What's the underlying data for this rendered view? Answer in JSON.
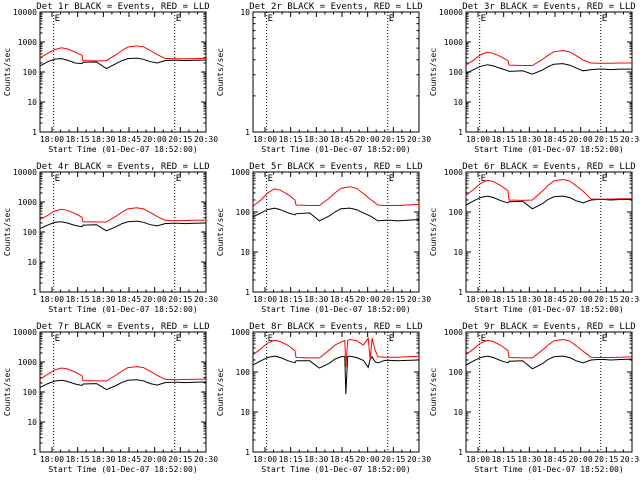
{
  "colors": {
    "events": "#000000",
    "lld": "#ff0000",
    "axis": "#000000",
    "background": "#ffffff"
  },
  "xaxis_label": "Start Time (01-Dec-07 18:52:00)",
  "yaxis_label": "Counts/sec",
  "marker_label": "E",
  "chart_data": [
    {
      "type": "line",
      "title": "Det 1r BLACK = Events, RED = LLD",
      "scale": "log",
      "xlim": [
        "17:52",
        "20:42"
      ],
      "ylim": [
        1,
        10000
      ],
      "xticks": [
        "18:00",
        "18:15",
        "18:30",
        "18:45",
        "20:00",
        "20:15",
        "20:30"
      ],
      "yticks": [
        "1",
        "10",
        "100",
        "1000",
        "10000"
      ],
      "markers_x": [
        "18:06",
        "20:10"
      ],
      "x": [
        "17:52",
        "18:00",
        "18:07",
        "18:14",
        "18:20",
        "18:28",
        "18:35",
        "18:36",
        "18:50",
        "19:00",
        "19:10",
        "19:16",
        "19:22",
        "19:31",
        "19:38",
        "19:45",
        "19:52",
        "20:00",
        "20:07",
        "20:13",
        "20:20",
        "20:30",
        "20:42"
      ],
      "series": [
        {
          "name": "BLACK = Events",
          "values": [
            160,
            220,
            270,
            280,
            250,
            200,
            190,
            210,
            215,
            130,
            190,
            240,
            280,
            290,
            265,
            220,
            200,
            240,
            245,
            245,
            240,
            245,
            250
          ]
        },
        {
          "name": "RED = LLD",
          "values": [
            300,
            420,
            560,
            640,
            590,
            460,
            360,
            240,
            235,
            240,
            380,
            520,
            680,
            740,
            690,
            520,
            380,
            285,
            280,
            275,
            275,
            280,
            285
          ]
        }
      ]
    },
    {
      "type": "line",
      "title": "Det 2r BLACK = Events, RED = LLD",
      "scale": "log",
      "xlim": [
        "17:52",
        "20:42"
      ],
      "ylim": [
        1,
        10
      ],
      "xticks": [
        "18:00",
        "18:15",
        "18:30",
        "18:45",
        "20:00",
        "20:15",
        "20:30"
      ],
      "yticks": [
        "1",
        "10"
      ],
      "markers_x": [
        "18:06",
        "20:10"
      ],
      "x": [],
      "series": []
    },
    {
      "type": "line",
      "title": "Det 3r BLACK = Events, RED = LLD",
      "scale": "log",
      "xlim": [
        "17:52",
        "20:42"
      ],
      "ylim": [
        1,
        10000
      ],
      "xticks": [
        "18:00",
        "18:15",
        "18:30",
        "18:45",
        "20:00",
        "20:15",
        "20:30"
      ],
      "yticks": [
        "1",
        "10",
        "100",
        "1000",
        "10000"
      ],
      "markers_x": [
        "18:06",
        "20:10"
      ],
      "x": [
        "17:52",
        "18:00",
        "18:07",
        "18:14",
        "18:20",
        "18:28",
        "18:35",
        "18:36",
        "18:50",
        "19:00",
        "19:10",
        "19:16",
        "19:22",
        "19:31",
        "19:38",
        "19:45",
        "19:52",
        "20:00",
        "20:07",
        "20:13",
        "20:20",
        "20:30",
        "20:42"
      ],
      "series": [
        {
          "name": "BLACK = Events",
          "values": [
            90,
            120,
            155,
            175,
            160,
            130,
            110,
            105,
            110,
            85,
            115,
            150,
            180,
            190,
            170,
            135,
            110,
            120,
            125,
            125,
            120,
            125,
            125
          ]
        },
        {
          "name": "RED = LLD",
          "values": [
            170,
            250,
            380,
            460,
            420,
            320,
            240,
            170,
            165,
            165,
            260,
            360,
            470,
            520,
            470,
            350,
            250,
            200,
            195,
            195,
            195,
            200,
            200
          ]
        }
      ]
    },
    {
      "type": "line",
      "title": "Det 4r BLACK = Events, RED = LLD",
      "scale": "log",
      "xlim": [
        "17:52",
        "20:42"
      ],
      "ylim": [
        1,
        10000
      ],
      "xticks": [
        "18:00",
        "18:15",
        "18:30",
        "18:45",
        "20:00",
        "20:15",
        "20:30"
      ],
      "yticks": [
        "1",
        "10",
        "100",
        "1000",
        "10000"
      ],
      "markers_x": [
        "18:06",
        "20:10"
      ],
      "x": [
        "17:52",
        "18:00",
        "18:07",
        "18:14",
        "18:20",
        "18:28",
        "18:35",
        "18:36",
        "18:50",
        "19:00",
        "19:10",
        "19:16",
        "19:22",
        "19:31",
        "19:38",
        "19:45",
        "19:52",
        "20:00",
        "20:07",
        "20:13",
        "20:20",
        "20:30",
        "20:42"
      ],
      "series": [
        {
          "name": "BLACK = Events",
          "values": [
            130,
            170,
            210,
            220,
            200,
            165,
            150,
            170,
            175,
            110,
            150,
            190,
            220,
            230,
            210,
            175,
            160,
            190,
            195,
            195,
            190,
            195,
            200
          ]
        },
        {
          "name": "RED = LLD",
          "values": [
            260,
            360,
            500,
            570,
            530,
            410,
            310,
            220,
            215,
            215,
            340,
            460,
            590,
            640,
            590,
            450,
            330,
            245,
            240,
            240,
            240,
            245,
            250
          ]
        }
      ]
    },
    {
      "type": "line",
      "title": "Det 5r BLACK = Events, RED = LLD",
      "scale": "log",
      "xlim": [
        "17:52",
        "20:42"
      ],
      "ylim": [
        1,
        1000
      ],
      "xticks": [
        "18:00",
        "18:15",
        "18:30",
        "18:45",
        "20:00",
        "20:15",
        "20:30"
      ],
      "yticks": [
        "1",
        "10",
        "100",
        "1000"
      ],
      "markers_x": [
        "18:06",
        "20:10"
      ],
      "x": [
        "17:52",
        "18:00",
        "18:07",
        "18:14",
        "18:20",
        "18:28",
        "18:35",
        "18:36",
        "18:50",
        "19:00",
        "19:10",
        "19:16",
        "19:22",
        "19:31",
        "19:38",
        "19:45",
        "19:52",
        "20:00",
        "20:07",
        "20:13",
        "20:20",
        "20:30",
        "20:42"
      ],
      "series": [
        {
          "name": "BLACK = Events",
          "values": [
            75,
            95,
            115,
            125,
            115,
            95,
            85,
            90,
            95,
            60,
            80,
            100,
            120,
            125,
            115,
            95,
            80,
            60,
            62,
            62,
            60,
            62,
            65
          ]
        },
        {
          "name": "RED = LLD",
          "values": [
            140,
            200,
            300,
            380,
            350,
            270,
            200,
            150,
            145,
            145,
            220,
            300,
            390,
            430,
            390,
            290,
            210,
            150,
            145,
            145,
            145,
            150,
            155
          ]
        }
      ]
    },
    {
      "type": "line",
      "title": "Det 6r BLACK = Events, RED = LLD",
      "scale": "log",
      "xlim": [
        "17:52",
        "20:42"
      ],
      "ylim": [
        1,
        1000
      ],
      "xticks": [
        "18:00",
        "18:15",
        "18:30",
        "18:45",
        "20:00",
        "20:15",
        "20:30"
      ],
      "yticks": [
        "1",
        "10",
        "100",
        "1000"
      ],
      "markers_x": [
        "18:06",
        "20:10"
      ],
      "x": [
        "17:52",
        "18:00",
        "18:07",
        "18:14",
        "18:20",
        "18:28",
        "18:35",
        "18:36",
        "18:50",
        "19:00",
        "19:10",
        "19:16",
        "19:22",
        "19:31",
        "19:38",
        "19:45",
        "19:52",
        "20:00",
        "20:07",
        "20:13",
        "20:20",
        "20:30",
        "20:42"
      ],
      "series": [
        {
          "name": "BLACK = Events",
          "values": [
            150,
            190,
            230,
            250,
            230,
            190,
            170,
            180,
            185,
            120,
            160,
            205,
            240,
            250,
            230,
            190,
            170,
            200,
            205,
            205,
            200,
            205,
            205
          ]
        },
        {
          "name": "RED = LLD",
          "values": [
            260,
            370,
            520,
            620,
            580,
            450,
            340,
            200,
            195,
            200,
            330,
            460,
            600,
            650,
            600,
            450,
            330,
            210,
            210,
            210,
            210,
            215,
            215
          ]
        }
      ]
    },
    {
      "type": "line",
      "title": "Det 7r BLACK = Events, RED = LLD",
      "scale": "log",
      "xlim": [
        "17:52",
        "20:42"
      ],
      "ylim": [
        1,
        10000
      ],
      "xticks": [
        "18:00",
        "18:15",
        "18:30",
        "18:45",
        "20:00",
        "20:15",
        "20:30"
      ],
      "yticks": [
        "1",
        "10",
        "100",
        "1000",
        "10000"
      ],
      "markers_x": [
        "18:06",
        "20:10"
      ],
      "x": [
        "17:52",
        "18:00",
        "18:07",
        "18:14",
        "18:20",
        "18:28",
        "18:35",
        "18:36",
        "18:50",
        "19:00",
        "19:10",
        "19:16",
        "19:22",
        "19:31",
        "19:38",
        "19:45",
        "19:52",
        "20:00",
        "20:07",
        "20:13",
        "20:20",
        "20:30",
        "20:42"
      ],
      "series": [
        {
          "name": "BLACK = Events",
          "values": [
            140,
            190,
            230,
            245,
            225,
            185,
            165,
            185,
            190,
            120,
            165,
            210,
            245,
            255,
            235,
            190,
            170,
            205,
            210,
            210,
            205,
            210,
            215
          ]
        },
        {
          "name": "RED = LLD",
          "values": [
            270,
            390,
            540,
            630,
            590,
            460,
            350,
            240,
            235,
            235,
            370,
            500,
            650,
            700,
            650,
            490,
            360,
            265,
            260,
            260,
            260,
            265,
            270
          ]
        }
      ]
    },
    {
      "type": "line",
      "title": "Det 8r BLACK = Events, RED = LLD",
      "scale": "log",
      "xlim": [
        "17:52",
        "20:42"
      ],
      "ylim": [
        1,
        1000
      ],
      "xticks": [
        "18:00",
        "18:15",
        "18:30",
        "18:45",
        "20:00",
        "20:15",
        "20:30"
      ],
      "yticks": [
        "1",
        "10",
        "100",
        "1000"
      ],
      "markers_x": [
        "18:06",
        "20:10"
      ],
      "x": [
        "17:52",
        "18:00",
        "18:07",
        "18:14",
        "18:20",
        "18:28",
        "18:35",
        "18:36",
        "18:50",
        "19:00",
        "19:10",
        "19:16",
        "19:22",
        "19:26",
        "19:27",
        "19:29",
        "19:31",
        "19:38",
        "19:45",
        "19:50",
        "19:52",
        "19:54",
        "19:57",
        "20:00",
        "20:07",
        "20:13",
        "20:20",
        "20:30",
        "20:42"
      ],
      "series": [
        {
          "name": "BLACK = Events",
          "values": [
            150,
            190,
            230,
            250,
            230,
            190,
            170,
            190,
            190,
            125,
            165,
            210,
            240,
            245,
            28,
            245,
            250,
            230,
            195,
            130,
            210,
            240,
            180,
            170,
            195,
            195,
            190,
            195,
            200
          ]
        },
        {
          "name": "RED = LLD",
          "values": [
            270,
            380,
            530,
            620,
            580,
            460,
            340,
            230,
            225,
            225,
            350,
            470,
            560,
            610,
            130,
            620,
            650,
            610,
            470,
            700,
            200,
            700,
            350,
            240,
            235,
            235,
            235,
            240,
            245
          ]
        }
      ]
    },
    {
      "type": "line",
      "title": "Det 9r BLACK = Events, RED = LLD",
      "scale": "log",
      "xlim": [
        "17:52",
        "20:42"
      ],
      "ylim": [
        1,
        1000
      ],
      "xticks": [
        "18:00",
        "18:15",
        "18:30",
        "18:45",
        "20:00",
        "20:15",
        "20:30"
      ],
      "yticks": [
        "1",
        "10",
        "100",
        "1000"
      ],
      "markers_x": [
        "18:06",
        "20:10"
      ],
      "x": [
        "17:52",
        "18:00",
        "18:07",
        "18:14",
        "18:20",
        "18:28",
        "18:35",
        "18:36",
        "18:50",
        "19:00",
        "19:10",
        "19:16",
        "19:22",
        "19:31",
        "19:38",
        "19:45",
        "19:52",
        "20:00",
        "20:07",
        "20:13",
        "20:20",
        "20:30",
        "20:42"
      ],
      "series": [
        {
          "name": "BLACK = Events",
          "values": [
            150,
            190,
            230,
            250,
            230,
            190,
            170,
            185,
            190,
            120,
            160,
            205,
            240,
            250,
            230,
            190,
            170,
            200,
            205,
            205,
            200,
            205,
            210
          ]
        },
        {
          "name": "RED = LLD",
          "values": [
            270,
            380,
            530,
            620,
            580,
            460,
            340,
            230,
            225,
            225,
            350,
            470,
            600,
            650,
            600,
            450,
            330,
            235,
            230,
            230,
            230,
            235,
            240
          ]
        }
      ]
    }
  ]
}
